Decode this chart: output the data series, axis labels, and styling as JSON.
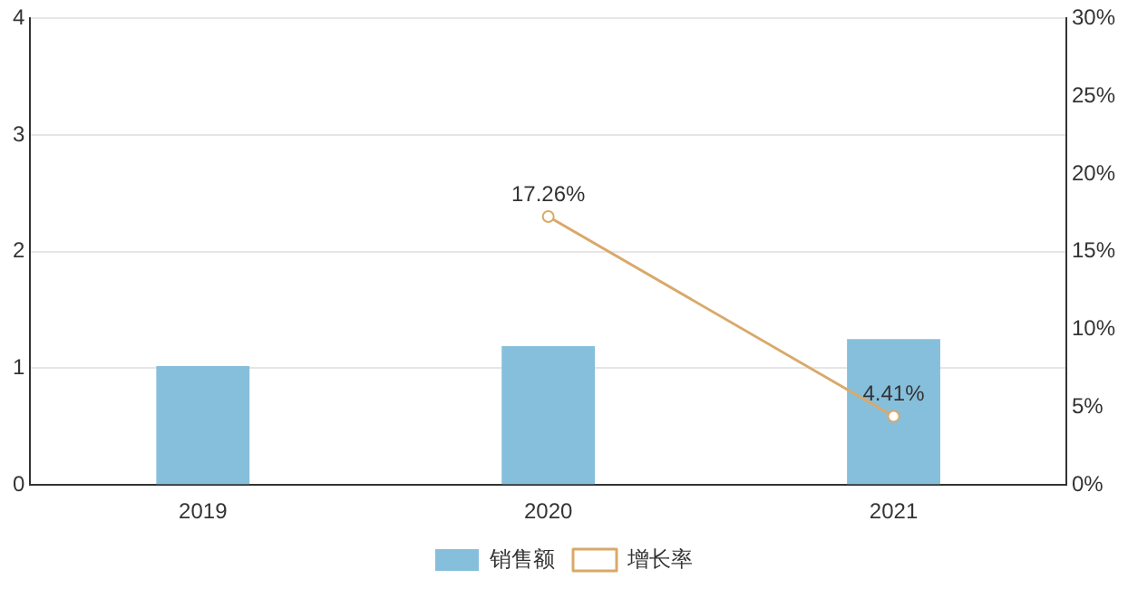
{
  "chart_data": {
    "type": "bar",
    "categories": [
      "2019",
      "2020",
      "2021"
    ],
    "series": [
      {
        "name": "销售额",
        "color": "#86bfdc",
        "values": [
          1.02,
          1.19,
          1.25
        ]
      },
      {
        "name": "增长率",
        "type": "line",
        "axis": "y2",
        "color": "#d9a96a",
        "values": [
          null,
          17.26,
          4.41
        ],
        "value_labels": [
          null,
          "17.26%",
          "4.41%"
        ],
        "marker": "circle"
      }
    ],
    "ylim": [
      0,
      4
    ],
    "yticks": [
      0,
      1,
      2,
      3,
      4
    ],
    "y2lim": [
      0,
      30
    ],
    "y2ticks": [
      {
        "value": 0,
        "label": "0%"
      },
      {
        "value": 5,
        "label": "5%"
      },
      {
        "value": 10,
        "label": "10%"
      },
      {
        "value": 15,
        "label": "15%"
      },
      {
        "value": 20,
        "label": "20%"
      },
      {
        "value": 25,
        "label": "25%"
      },
      {
        "value": 30,
        "label": "30%"
      }
    ],
    "grid": "y",
    "legend": "bottom"
  }
}
